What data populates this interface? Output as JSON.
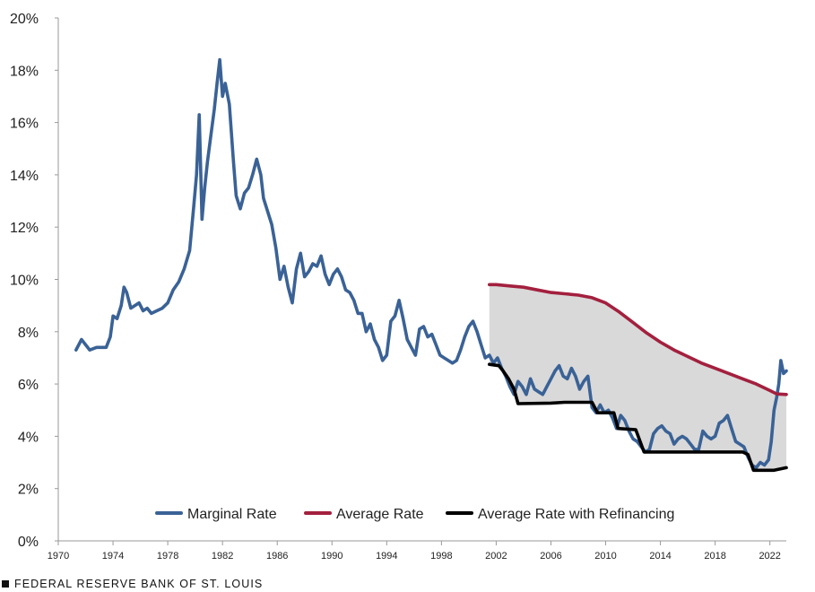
{
  "chart_data": {
    "type": "line",
    "title": "",
    "xlabel": "",
    "ylabel": "",
    "xlim": [
      1970,
      2023.2
    ],
    "ylim": [
      0,
      20
    ],
    "x_ticks": [
      1970,
      1974,
      1978,
      1982,
      1986,
      1990,
      1994,
      1998,
      2002,
      2006,
      2010,
      2014,
      2018,
      2022
    ],
    "y_ticks": [
      0,
      2,
      4,
      6,
      8,
      10,
      12,
      14,
      16,
      18,
      20
    ],
    "y_tick_labels": [
      "0%",
      "2%",
      "4%",
      "6%",
      "8%",
      "10%",
      "12%",
      "14%",
      "16%",
      "18%",
      "20%"
    ],
    "grid": false,
    "legend_position": "bottom-center",
    "shaded_region": {
      "between": [
        "Average Rate",
        "Average Rate with Refinancing"
      ],
      "color": "#d9d9d9"
    },
    "series": [
      {
        "name": "Marginal Rate",
        "color": "#3a6296",
        "points": [
          [
            1971.3,
            7.3
          ],
          [
            1971.7,
            7.7
          ],
          [
            1972.0,
            7.5
          ],
          [
            1972.3,
            7.3
          ],
          [
            1972.8,
            7.4
          ],
          [
            1973.5,
            7.4
          ],
          [
            1973.8,
            7.8
          ],
          [
            1974.0,
            8.6
          ],
          [
            1974.3,
            8.5
          ],
          [
            1974.6,
            9.0
          ],
          [
            1974.8,
            9.7
          ],
          [
            1975.0,
            9.5
          ],
          [
            1975.3,
            8.9
          ],
          [
            1975.6,
            9.0
          ],
          [
            1975.9,
            9.1
          ],
          [
            1976.2,
            8.8
          ],
          [
            1976.5,
            8.9
          ],
          [
            1976.8,
            8.7
          ],
          [
            1977.2,
            8.8
          ],
          [
            1977.6,
            8.9
          ],
          [
            1978.0,
            9.1
          ],
          [
            1978.4,
            9.6
          ],
          [
            1978.8,
            9.9
          ],
          [
            1979.2,
            10.4
          ],
          [
            1979.6,
            11.1
          ],
          [
            1979.9,
            12.8
          ],
          [
            1980.1,
            14.0
          ],
          [
            1980.3,
            16.3
          ],
          [
            1980.5,
            12.3
          ],
          [
            1980.7,
            13.5
          ],
          [
            1980.9,
            14.5
          ],
          [
            1981.1,
            15.3
          ],
          [
            1981.4,
            16.5
          ],
          [
            1981.6,
            17.5
          ],
          [
            1981.8,
            18.4
          ],
          [
            1982.0,
            17.0
          ],
          [
            1982.2,
            17.5
          ],
          [
            1982.5,
            16.7
          ],
          [
            1982.8,
            14.5
          ],
          [
            1983.0,
            13.2
          ],
          [
            1983.3,
            12.7
          ],
          [
            1983.6,
            13.3
          ],
          [
            1983.9,
            13.5
          ],
          [
            1984.2,
            14.0
          ],
          [
            1984.5,
            14.6
          ],
          [
            1984.8,
            14.0
          ],
          [
            1985.0,
            13.1
          ],
          [
            1985.3,
            12.6
          ],
          [
            1985.6,
            12.1
          ],
          [
            1985.9,
            11.2
          ],
          [
            1986.2,
            10.0
          ],
          [
            1986.5,
            10.5
          ],
          [
            1986.8,
            9.7
          ],
          [
            1987.1,
            9.1
          ],
          [
            1987.4,
            10.4
          ],
          [
            1987.7,
            11.0
          ],
          [
            1988.0,
            10.1
          ],
          [
            1988.3,
            10.3
          ],
          [
            1988.6,
            10.6
          ],
          [
            1988.9,
            10.5
          ],
          [
            1989.2,
            10.9
          ],
          [
            1989.5,
            10.2
          ],
          [
            1989.8,
            9.8
          ],
          [
            1990.1,
            10.2
          ],
          [
            1990.4,
            10.4
          ],
          [
            1990.7,
            10.1
          ],
          [
            1991.0,
            9.6
          ],
          [
            1991.3,
            9.5
          ],
          [
            1991.6,
            9.2
          ],
          [
            1991.9,
            8.7
          ],
          [
            1992.2,
            8.7
          ],
          [
            1992.5,
            8.0
          ],
          [
            1992.8,
            8.3
          ],
          [
            1993.1,
            7.7
          ],
          [
            1993.4,
            7.4
          ],
          [
            1993.7,
            6.9
          ],
          [
            1994.0,
            7.1
          ],
          [
            1994.3,
            8.4
          ],
          [
            1994.6,
            8.6
          ],
          [
            1994.9,
            9.2
          ],
          [
            1995.2,
            8.5
          ],
          [
            1995.5,
            7.7
          ],
          [
            1995.8,
            7.4
          ],
          [
            1996.1,
            7.1
          ],
          [
            1996.4,
            8.1
          ],
          [
            1996.7,
            8.2
          ],
          [
            1997.0,
            7.8
          ],
          [
            1997.3,
            7.9
          ],
          [
            1997.6,
            7.5
          ],
          [
            1997.9,
            7.1
          ],
          [
            1998.2,
            7.0
          ],
          [
            1998.5,
            6.9
          ],
          [
            1998.8,
            6.8
          ],
          [
            1999.1,
            6.9
          ],
          [
            1999.4,
            7.3
          ],
          [
            1999.7,
            7.8
          ],
          [
            2000.0,
            8.2
          ],
          [
            2000.3,
            8.4
          ],
          [
            2000.6,
            8.0
          ],
          [
            2000.9,
            7.5
          ],
          [
            2001.2,
            7.0
          ],
          [
            2001.5,
            7.1
          ],
          [
            2001.8,
            6.8
          ],
          [
            2002.1,
            7.0
          ],
          [
            2002.4,
            6.6
          ],
          [
            2002.7,
            6.3
          ],
          [
            2003.0,
            5.9
          ],
          [
            2003.3,
            5.6
          ],
          [
            2003.6,
            6.1
          ],
          [
            2003.9,
            5.9
          ],
          [
            2004.2,
            5.6
          ],
          [
            2004.5,
            6.2
          ],
          [
            2004.8,
            5.8
          ],
          [
            2005.1,
            5.7
          ],
          [
            2005.4,
            5.6
          ],
          [
            2005.7,
            5.9
          ],
          [
            2006.0,
            6.2
          ],
          [
            2006.3,
            6.5
          ],
          [
            2006.6,
            6.7
          ],
          [
            2006.9,
            6.3
          ],
          [
            2007.2,
            6.2
          ],
          [
            2007.5,
            6.6
          ],
          [
            2007.8,
            6.3
          ],
          [
            2008.1,
            5.8
          ],
          [
            2008.4,
            6.1
          ],
          [
            2008.7,
            6.3
          ],
          [
            2009.0,
            5.1
          ],
          [
            2009.3,
            4.9
          ],
          [
            2009.6,
            5.2
          ],
          [
            2009.9,
            4.9
          ],
          [
            2010.2,
            5.0
          ],
          [
            2010.5,
            4.7
          ],
          [
            2010.8,
            4.3
          ],
          [
            2011.1,
            4.8
          ],
          [
            2011.4,
            4.6
          ],
          [
            2011.7,
            4.2
          ],
          [
            2012.0,
            3.9
          ],
          [
            2012.3,
            3.8
          ],
          [
            2012.6,
            3.6
          ],
          [
            2012.9,
            3.4
          ],
          [
            2013.2,
            3.5
          ],
          [
            2013.5,
            4.1
          ],
          [
            2013.8,
            4.3
          ],
          [
            2014.1,
            4.4
          ],
          [
            2014.4,
            4.2
          ],
          [
            2014.7,
            4.1
          ],
          [
            2015.0,
            3.7
          ],
          [
            2015.3,
            3.9
          ],
          [
            2015.6,
            4.0
          ],
          [
            2015.9,
            3.9
          ],
          [
            2016.2,
            3.7
          ],
          [
            2016.5,
            3.5
          ],
          [
            2016.8,
            3.5
          ],
          [
            2017.1,
            4.2
          ],
          [
            2017.4,
            4.0
          ],
          [
            2017.7,
            3.9
          ],
          [
            2018.0,
            4.0
          ],
          [
            2018.3,
            4.5
          ],
          [
            2018.6,
            4.6
          ],
          [
            2018.9,
            4.8
          ],
          [
            2019.2,
            4.3
          ],
          [
            2019.5,
            3.8
          ],
          [
            2019.8,
            3.7
          ],
          [
            2020.1,
            3.6
          ],
          [
            2020.4,
            3.2
          ],
          [
            2020.7,
            2.9
          ],
          [
            2021.0,
            2.8
          ],
          [
            2021.3,
            3.0
          ],
          [
            2021.6,
            2.9
          ],
          [
            2021.9,
            3.1
          ],
          [
            2022.1,
            3.8
          ],
          [
            2022.3,
            5.0
          ],
          [
            2022.5,
            5.5
          ],
          [
            2022.65,
            6.0
          ],
          [
            2022.8,
            6.9
          ],
          [
            2023.0,
            6.4
          ],
          [
            2023.2,
            6.5
          ]
        ]
      },
      {
        "name": "Average Rate",
        "color": "#a3203e",
        "points": [
          [
            2001.5,
            9.8
          ],
          [
            2002.0,
            9.8
          ],
          [
            2003.0,
            9.75
          ],
          [
            2004.0,
            9.7
          ],
          [
            2005.0,
            9.6
          ],
          [
            2006.0,
            9.5
          ],
          [
            2007.0,
            9.45
          ],
          [
            2008.0,
            9.4
          ],
          [
            2009.0,
            9.3
          ],
          [
            2010.0,
            9.1
          ],
          [
            2011.0,
            8.75
          ],
          [
            2012.0,
            8.35
          ],
          [
            2013.0,
            7.95
          ],
          [
            2014.0,
            7.6
          ],
          [
            2015.0,
            7.3
          ],
          [
            2016.0,
            7.05
          ],
          [
            2017.0,
            6.8
          ],
          [
            2018.0,
            6.6
          ],
          [
            2019.0,
            6.4
          ],
          [
            2020.0,
            6.2
          ],
          [
            2021.0,
            6.0
          ],
          [
            2022.0,
            5.75
          ],
          [
            2022.5,
            5.62
          ],
          [
            2023.2,
            5.6
          ]
        ]
      },
      {
        "name": "Average Rate with Refinancing",
        "color": "#000000",
        "points": [
          [
            2001.5,
            6.75
          ],
          [
            2002.2,
            6.7
          ],
          [
            2002.5,
            6.5
          ],
          [
            2002.9,
            6.2
          ],
          [
            2003.3,
            5.8
          ],
          [
            2003.6,
            5.25
          ],
          [
            2006.0,
            5.27
          ],
          [
            2007.0,
            5.3
          ],
          [
            2009.0,
            5.3
          ],
          [
            2009.4,
            4.9
          ],
          [
            2010.6,
            4.9
          ],
          [
            2010.9,
            4.3
          ],
          [
            2012.2,
            4.25
          ],
          [
            2012.8,
            3.4
          ],
          [
            2016.0,
            3.4
          ],
          [
            2020.0,
            3.4
          ],
          [
            2020.4,
            3.3
          ],
          [
            2020.8,
            2.7
          ],
          [
            2022.3,
            2.7
          ],
          [
            2023.2,
            2.8
          ]
        ]
      }
    ]
  },
  "footer": {
    "source": "FEDERAL RESERVE BANK OF ST. LOUIS"
  }
}
